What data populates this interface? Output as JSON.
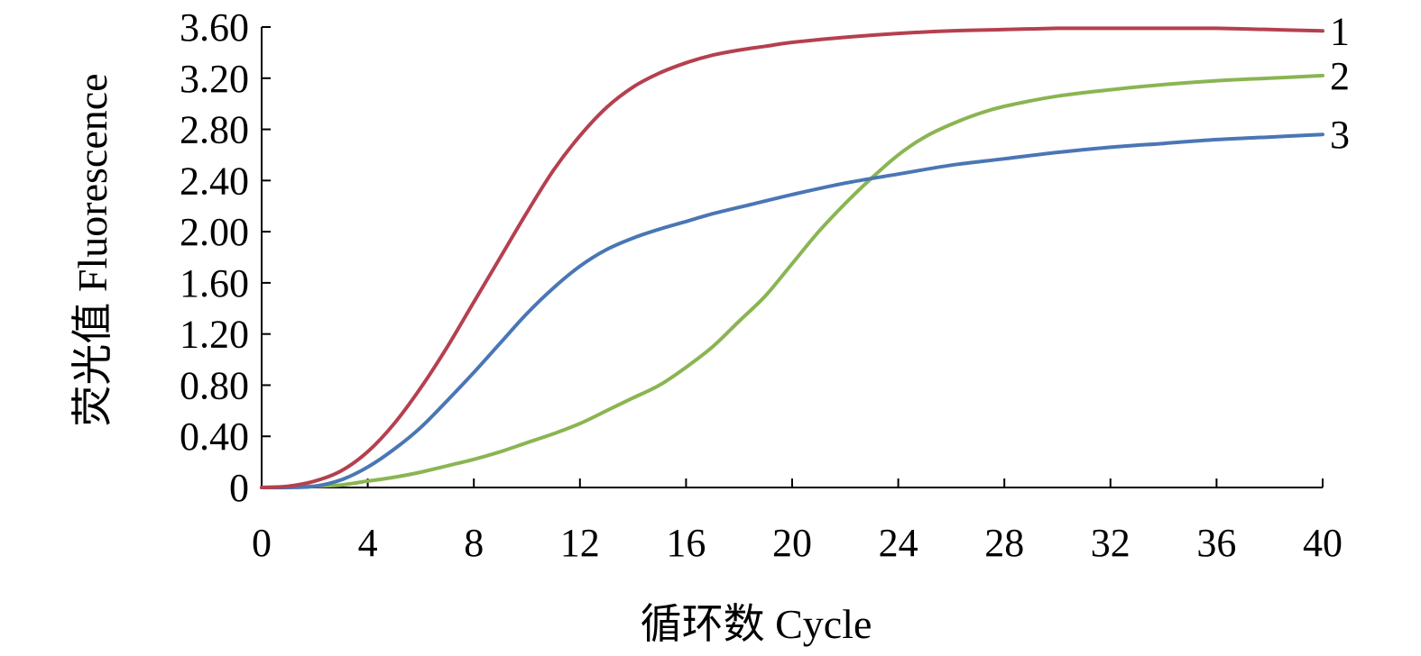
{
  "chart_data": {
    "type": "line",
    "title": "",
    "xlabel": "循环数 Cycle",
    "ylabel": "荧光值 Fluorescence",
    "xlim": [
      0,
      40
    ],
    "ylim": [
      0,
      3.6
    ],
    "xticks": [
      0,
      4,
      8,
      12,
      16,
      20,
      24,
      28,
      32,
      36,
      40
    ],
    "xtick_labels": [
      "0",
      "4",
      "8",
      "12",
      "16",
      "20",
      "24",
      "28",
      "32",
      "36",
      "40"
    ],
    "yticks": [
      0,
      0.4,
      0.8,
      1.2,
      1.6,
      2.0,
      2.4,
      2.8,
      3.2,
      3.6
    ],
    "ytick_labels": [
      "0",
      "0.40",
      "0.80",
      "1.20",
      "1.60",
      "2.00",
      "2.40",
      "2.80",
      "3.20",
      "3.60"
    ],
    "grid": false,
    "legend": "none",
    "series": [
      {
        "name": "1",
        "color": "#b5404f",
        "x": [
          0,
          1,
          2,
          3,
          4,
          5,
          6,
          7,
          8,
          9,
          10,
          11,
          12,
          13,
          14,
          15,
          16,
          17,
          18,
          19,
          20,
          22,
          24,
          26,
          28,
          30,
          32,
          34,
          36,
          38,
          40
        ],
        "y": [
          0,
          0.01,
          0.05,
          0.13,
          0.28,
          0.5,
          0.78,
          1.1,
          1.45,
          1.8,
          2.15,
          2.48,
          2.75,
          2.97,
          3.13,
          3.24,
          3.32,
          3.38,
          3.42,
          3.45,
          3.48,
          3.52,
          3.55,
          3.57,
          3.58,
          3.59,
          3.59,
          3.59,
          3.59,
          3.58,
          3.57
        ]
      },
      {
        "name": "2",
        "color": "#8ab552",
        "x": [
          0,
          2,
          3,
          4,
          5,
          6,
          7,
          8,
          9,
          10,
          11,
          12,
          13,
          14,
          15,
          16,
          17,
          18,
          19,
          20,
          21,
          22,
          23,
          24,
          25,
          26,
          27,
          28,
          30,
          32,
          34,
          36,
          38,
          40
        ],
        "y": [
          0,
          0.01,
          0.02,
          0.05,
          0.08,
          0.12,
          0.17,
          0.22,
          0.28,
          0.35,
          0.42,
          0.5,
          0.6,
          0.7,
          0.8,
          0.94,
          1.1,
          1.3,
          1.5,
          1.75,
          2.0,
          2.22,
          2.42,
          2.6,
          2.74,
          2.84,
          2.92,
          2.98,
          3.06,
          3.11,
          3.15,
          3.18,
          3.2,
          3.22
        ]
      },
      {
        "name": "3",
        "color": "#4a76b5",
        "x": [
          0,
          1,
          2,
          3,
          4,
          5,
          6,
          7,
          8,
          9,
          10,
          11,
          12,
          13,
          14,
          15,
          16,
          17,
          18,
          20,
          22,
          24,
          26,
          28,
          30,
          32,
          34,
          36,
          38,
          40
        ],
        "y": [
          0,
          0,
          0.01,
          0.06,
          0.16,
          0.3,
          0.47,
          0.68,
          0.9,
          1.13,
          1.36,
          1.56,
          1.73,
          1.86,
          1.95,
          2.02,
          2.08,
          2.14,
          2.19,
          2.29,
          2.38,
          2.45,
          2.52,
          2.57,
          2.62,
          2.66,
          2.69,
          2.72,
          2.74,
          2.76
        ]
      }
    ]
  }
}
